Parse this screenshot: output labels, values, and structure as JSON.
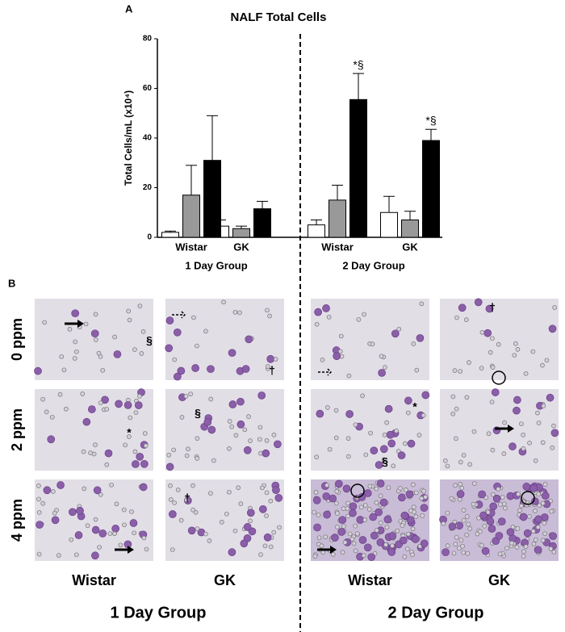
{
  "chart_data": {
    "type": "bar",
    "panel": "A",
    "title": "NALF Total Cells",
    "ylabel": "Total Cells/mL (x10⁴)",
    "categories": [
      "Wistar",
      "GK",
      "Wistar",
      "GK"
    ],
    "groups": [
      "1 Day Group",
      "2 Day Group"
    ],
    "series": [
      {
        "color": "#ffffff",
        "values": [
          2,
          4.5,
          5,
          10
        ],
        "errors": [
          0.5,
          2.5,
          2,
          6.5
        ]
      },
      {
        "color": "#999999",
        "values": [
          17,
          3.5,
          15,
          7
        ],
        "errors": [
          12,
          1,
          6,
          3.5
        ]
      },
      {
        "color": "#000000",
        "values": [
          31,
          11.5,
          55.5,
          39
        ],
        "errors": [
          18,
          3,
          10.5,
          4.5
        ]
      }
    ],
    "annotations": [
      "*§",
      "*§"
    ],
    "ylim": [
      0,
      80
    ],
    "yticks": [
      0,
      20,
      40,
      60,
      80
    ]
  },
  "panel_b": {
    "label": "B",
    "rows": [
      "0 ppm",
      "2 ppm",
      "4 ppm"
    ],
    "columns": [
      "Wistar",
      "GK",
      "Wistar",
      "GK"
    ],
    "groups": [
      "1 Day Group",
      "2 Day Group"
    ],
    "symbols": [
      "§",
      "†",
      "†",
      "*",
      "§",
      "*",
      "§",
      "†"
    ]
  }
}
